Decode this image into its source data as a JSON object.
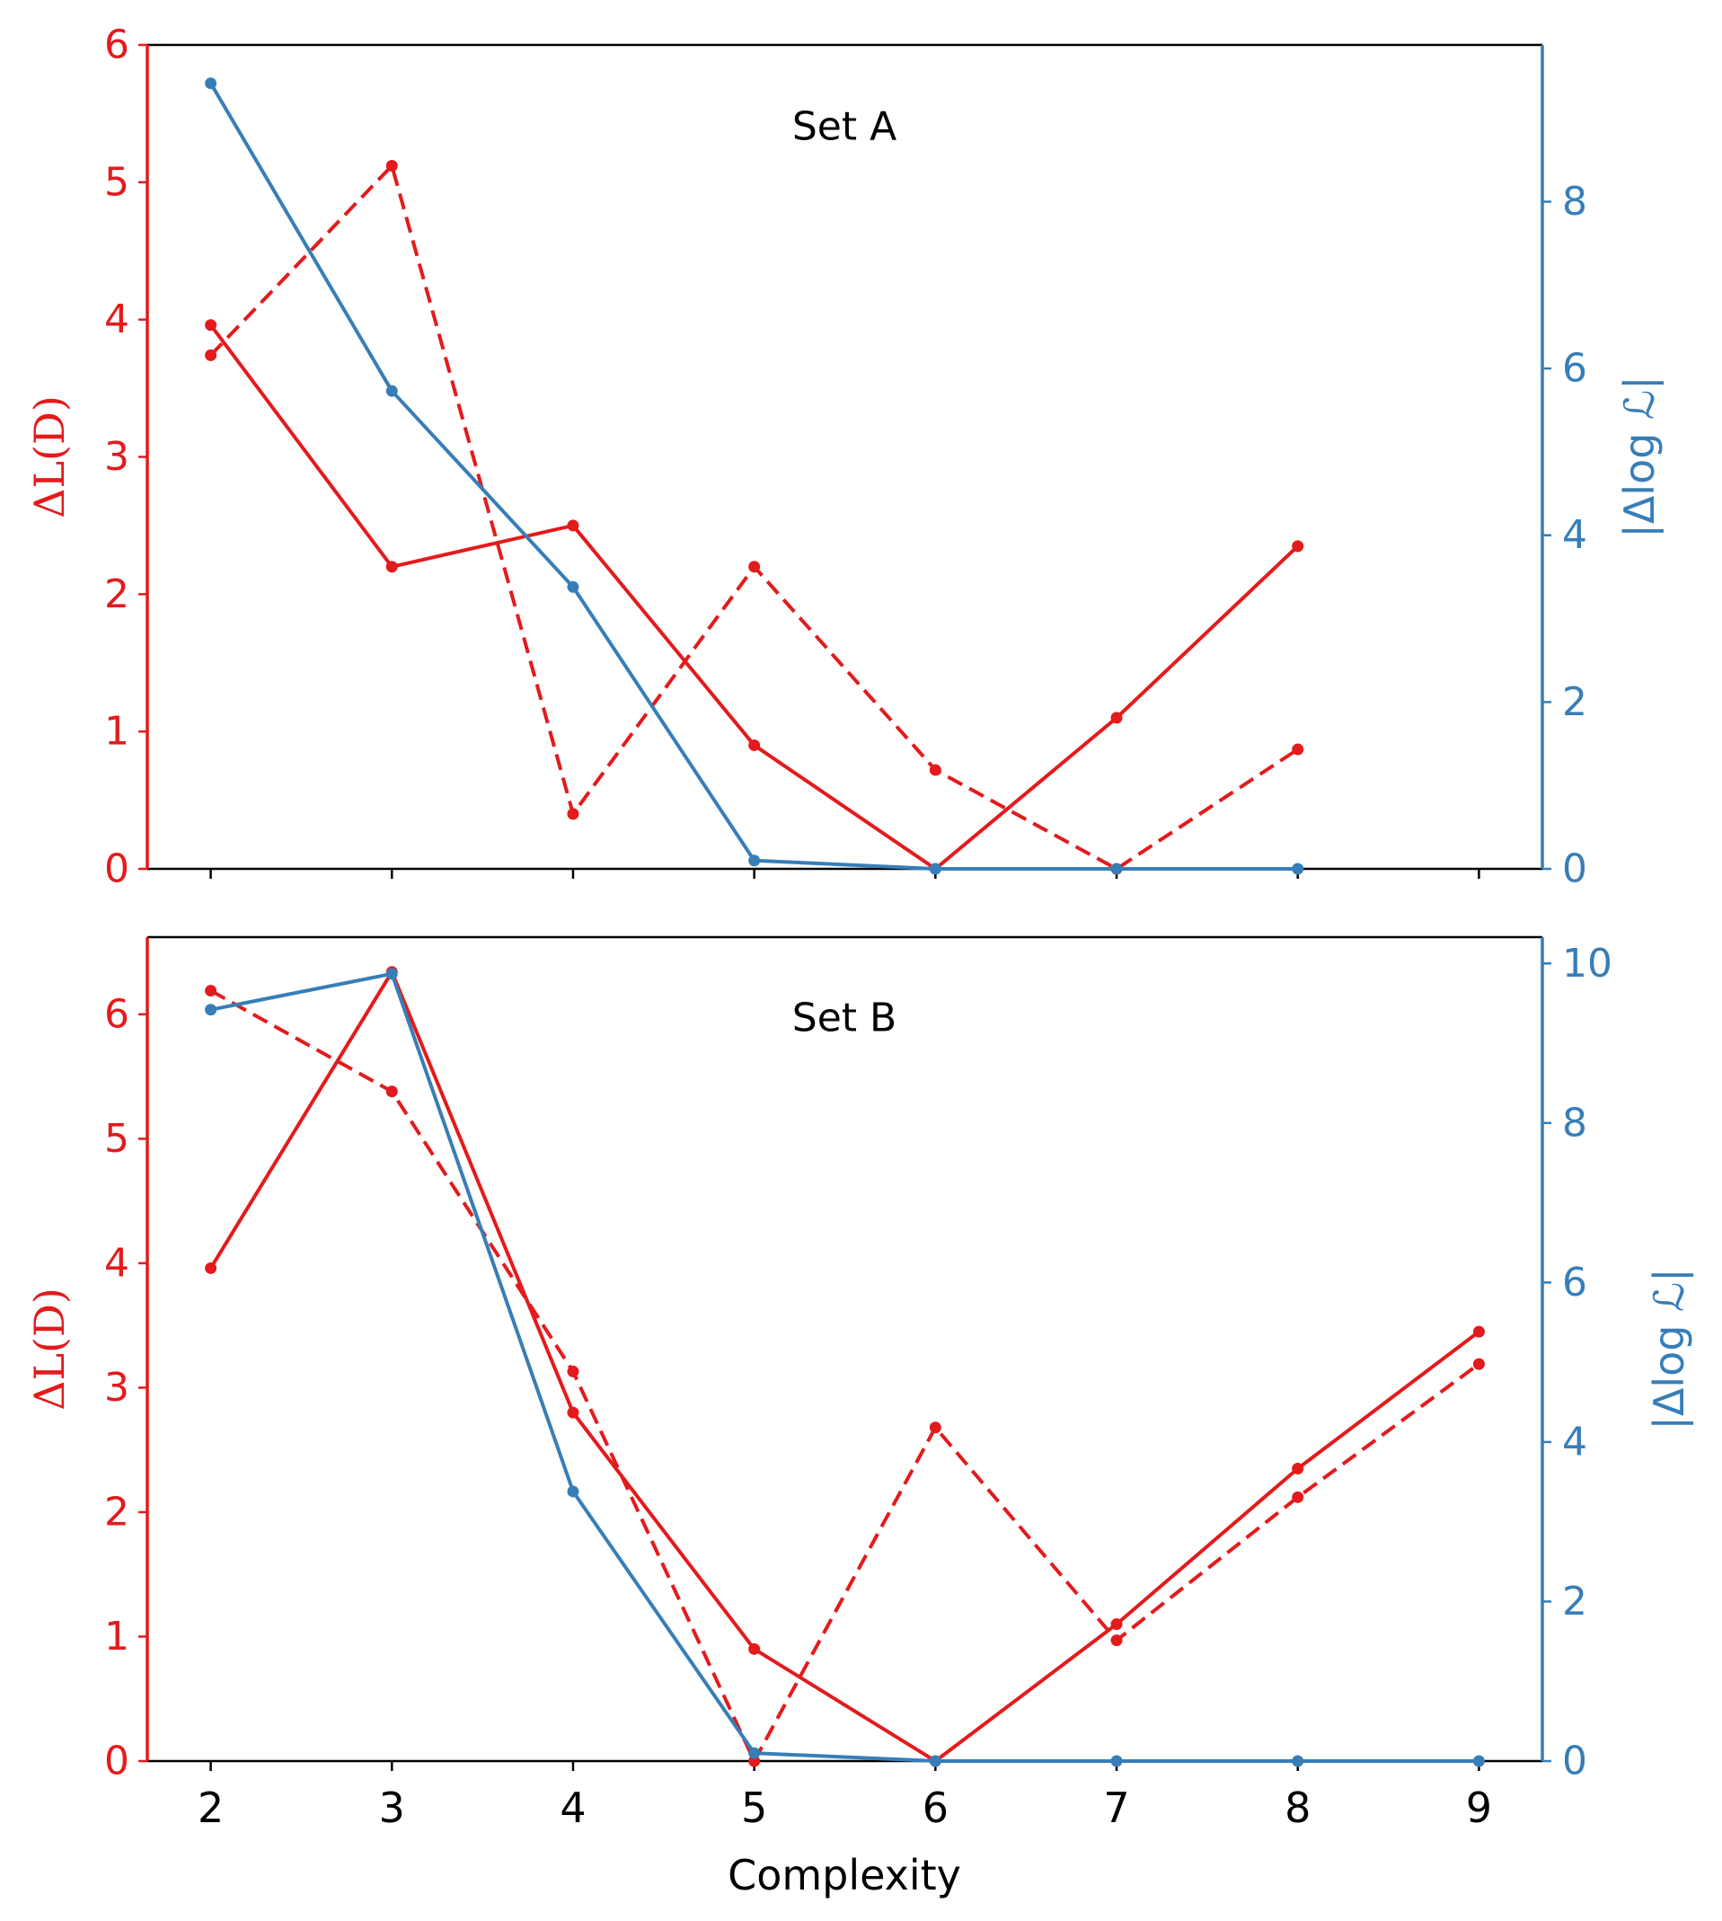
{
  "colors": {
    "left_axis": "#e41a1c",
    "right_axis": "#377eb8",
    "frame": "#000000"
  },
  "figure": {
    "xlabel": "Complexity",
    "x_ticks": [
      "2",
      "3",
      "4",
      "5",
      "6",
      "7",
      "8",
      "9"
    ]
  },
  "chart_data": [
    {
      "type": "line",
      "annotation": "Set A",
      "xlabel": "",
      "ylabel_left": "ΔL(D)",
      "ylabel_right": "|Δlog ℒ|",
      "xlim": [
        1.65,
        9.35
      ],
      "ylim_left": [
        0,
        6
      ],
      "ylim_right": [
        0,
        9.88
      ],
      "y_ticks_left": [
        0,
        1,
        2,
        3,
        4,
        5,
        6
      ],
      "y_ticks_right": [
        0,
        2,
        4,
        6,
        8
      ],
      "grid": false,
      "series": [
        {
          "axis": "left",
          "style": "solid",
          "color": "#e41a1c",
          "x": [
            2,
            3,
            4,
            5,
            6,
            7,
            8
          ],
          "values": [
            3.96,
            2.2,
            2.5,
            0.9,
            0.0,
            1.1,
            2.35
          ]
        },
        {
          "axis": "left",
          "style": "dashed",
          "color": "#e41a1c",
          "x": [
            2,
            3,
            4,
            5,
            6,
            7,
            8
          ],
          "values": [
            3.74,
            5.12,
            0.4,
            2.2,
            0.72,
            0.0,
            0.87
          ]
        },
        {
          "axis": "right",
          "style": "solid",
          "color": "#377eb8",
          "x": [
            2,
            3,
            4,
            5,
            6,
            7,
            8
          ],
          "values": [
            9.42,
            5.73,
            3.38,
            0.1,
            0.0,
            0.0,
            0.0
          ]
        }
      ]
    },
    {
      "type": "line",
      "annotation": "Set B",
      "xlabel": "Complexity",
      "ylabel_left": "ΔL(D)",
      "ylabel_right": "|Δlog ℒ|",
      "xlim": [
        1.65,
        9.35
      ],
      "ylim_left": [
        0,
        6.62
      ],
      "ylim_right": [
        0,
        10.33
      ],
      "y_ticks_left": [
        0,
        1,
        2,
        3,
        4,
        5,
        6
      ],
      "y_ticks_right": [
        0,
        2,
        4,
        6,
        8,
        10
      ],
      "grid": false,
      "series": [
        {
          "axis": "left",
          "style": "solid",
          "color": "#e41a1c",
          "x": [
            2,
            3,
            4,
            5,
            6,
            7,
            8,
            9
          ],
          "values": [
            3.96,
            6.34,
            2.8,
            0.9,
            0.0,
            1.1,
            2.35,
            3.45
          ]
        },
        {
          "axis": "left",
          "style": "dashed",
          "color": "#e41a1c",
          "x": [
            2,
            3,
            4,
            5,
            6,
            7,
            8,
            9
          ],
          "values": [
            6.19,
            5.38,
            3.13,
            0.0,
            2.68,
            0.97,
            2.12,
            3.19
          ]
        },
        {
          "axis": "right",
          "style": "solid",
          "color": "#377eb8",
          "x": [
            2,
            3,
            4,
            5,
            6,
            7,
            8,
            9
          ],
          "values": [
            9.42,
            9.87,
            3.38,
            0.1,
            0.0,
            0.0,
            0.0,
            0.0
          ]
        }
      ]
    }
  ]
}
